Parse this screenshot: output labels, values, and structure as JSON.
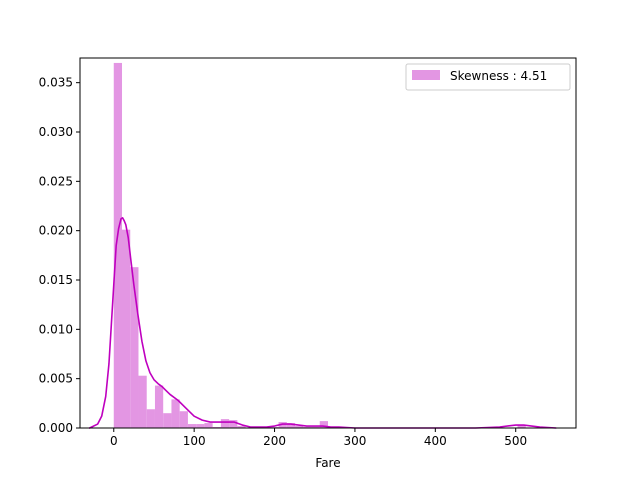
{
  "chart_data": {
    "type": "bar",
    "title": "",
    "xlabel": "Fare",
    "ylabel": "",
    "xlim": [
      -42,
      575
    ],
    "ylim": [
      0,
      0.0375
    ],
    "xticks": [
      0,
      100,
      200,
      300,
      400,
      500
    ],
    "xtick_labels": [
      "0",
      "100",
      "200",
      "300",
      "400",
      "500"
    ],
    "yticks": [
      0.0,
      0.005,
      0.01,
      0.015,
      0.02,
      0.025,
      0.03,
      0.035
    ],
    "ytick_labels": [
      "0.000",
      "0.005",
      "0.010",
      "0.015",
      "0.020",
      "0.025",
      "0.030",
      "0.035"
    ],
    "grid": false,
    "legend_position": "upper right",
    "colors": {
      "bars": "#e396e3",
      "kde": "#bf00bf"
    },
    "histogram": {
      "name": "Skewness : 4.51",
      "bin_width": 10.25,
      "bin_start": 0,
      "values": [
        0.037,
        0.0201,
        0.0163,
        0.0053,
        0.0019,
        0.0043,
        0.0015,
        0.0029,
        0.0017,
        0.0004,
        0.0004,
        0.0005,
        0.0001,
        0.0009,
        0.0008,
        0.0002,
        0.0,
        0.0,
        0.0001,
        0.0001,
        0.0006,
        0.0005,
        0.0002,
        0.0001,
        0.0001,
        0.0007,
        0.0001,
        0.0,
        0.0,
        0.0,
        0.0,
        0.0,
        0.0,
        0.0,
        0.0,
        0.0,
        0.0,
        0.0,
        0.0,
        0.0,
        0.0,
        0.0,
        0.0,
        0.0,
        0.0,
        0.0,
        0.0,
        0.0,
        0.0,
        0.0003
      ]
    },
    "kde": {
      "x": [
        -30,
        -20,
        -15,
        -10,
        -6,
        -3,
        0,
        3,
        6,
        9,
        11,
        13,
        15,
        18,
        21,
        25,
        30,
        35,
        40,
        45,
        50,
        55,
        60,
        65,
        70,
        80,
        90,
        100,
        110,
        120,
        130,
        140,
        150,
        160,
        170,
        180,
        190,
        200,
        210,
        220,
        230,
        240,
        250,
        260,
        270,
        280,
        300,
        350,
        400,
        450,
        480,
        500,
        510,
        520,
        530,
        550
      ],
      "y": [
        0.0,
        0.0004,
        0.0012,
        0.0032,
        0.0065,
        0.0105,
        0.0145,
        0.0185,
        0.0202,
        0.0212,
        0.0213,
        0.021,
        0.0206,
        0.0193,
        0.0172,
        0.0145,
        0.0115,
        0.0088,
        0.0068,
        0.0056,
        0.0049,
        0.0045,
        0.0042,
        0.0038,
        0.0034,
        0.0028,
        0.002,
        0.0012,
        0.0008,
        0.0006,
        0.0006,
        0.0006,
        0.0006,
        0.0003,
        0.0001,
        0.0001,
        0.0001,
        0.0002,
        0.0004,
        0.0004,
        0.0003,
        0.0002,
        0.0002,
        0.0002,
        0.0001,
        0.0001,
        0.0,
        0.0,
        0.0,
        0.0,
        0.0001,
        0.0003,
        0.0003,
        0.0002,
        0.0001,
        0.0
      ]
    }
  }
}
